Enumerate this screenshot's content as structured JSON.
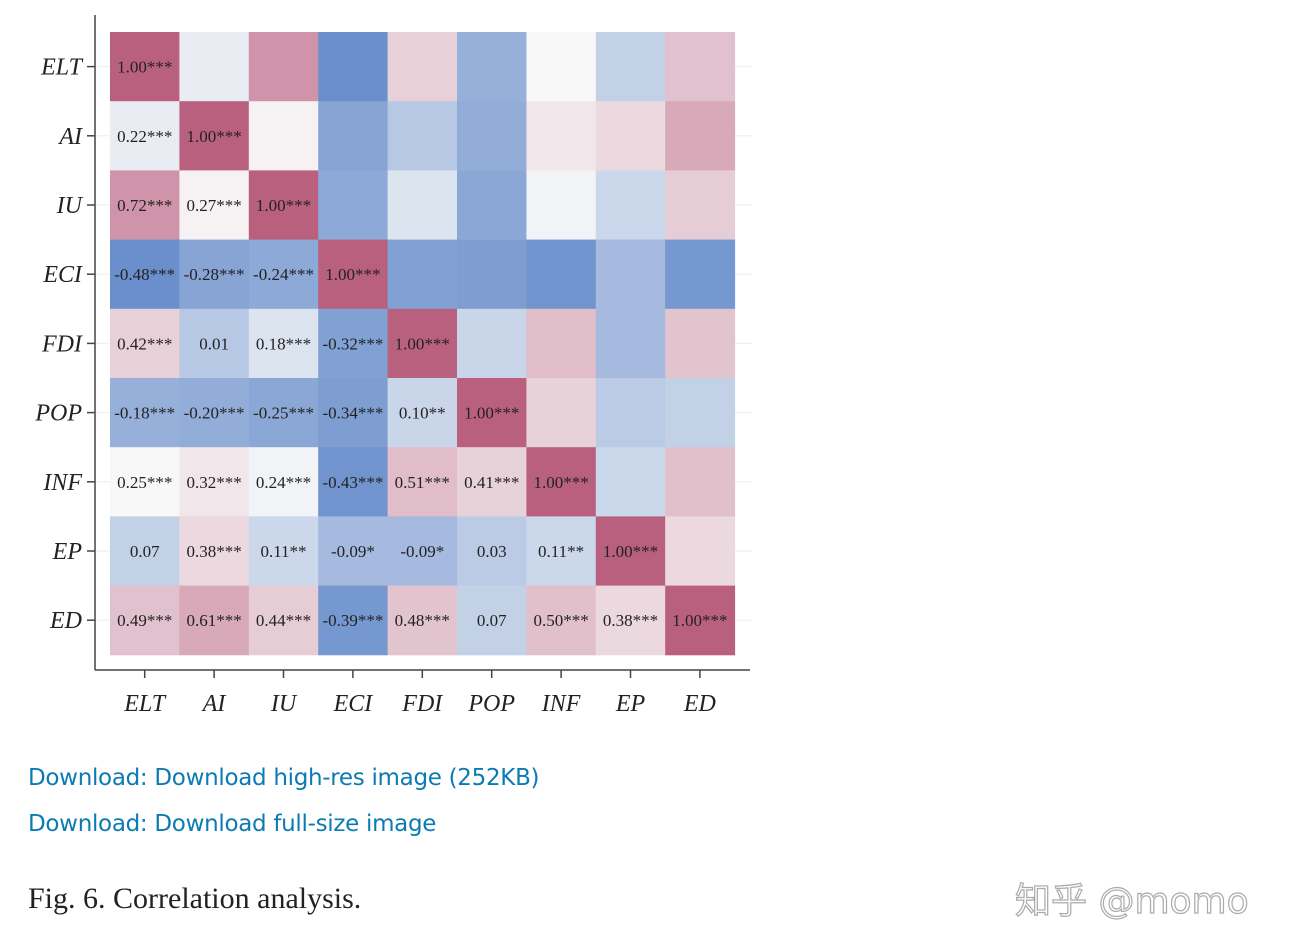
{
  "chart_data": {
    "type": "heatmap",
    "variables": [
      "ELT",
      "AI",
      "IU",
      "ECI",
      "FDI",
      "POP",
      "INF",
      "EP",
      "ED"
    ],
    "lower_triangle_labels": [
      [
        "1.00***"
      ],
      [
        "0.22***",
        "1.00***"
      ],
      [
        "0.72***",
        "0.27***",
        "1.00***"
      ],
      [
        "-0.48***",
        "-0.28***",
        "-0.24***",
        "1.00***"
      ],
      [
        "0.42***",
        "0.01",
        "0.18***",
        "-0.32***",
        "1.00***"
      ],
      [
        "-0.18***",
        "-0.20***",
        "-0.25***",
        "-0.34***",
        "0.10**",
        "1.00***"
      ],
      [
        "0.25***",
        "0.32***",
        "0.24***",
        "-0.43***",
        "0.51***",
        "0.41***",
        "1.00***"
      ],
      [
        "0.07",
        "0.38***",
        "0.11**",
        "-0.09*",
        "-0.09*",
        "0.03",
        "0.11**",
        "1.00***"
      ],
      [
        "0.49***",
        "0.61***",
        "0.44***",
        "-0.39***",
        "0.48***",
        "0.07",
        "0.50***",
        "0.38***",
        "1.00***"
      ]
    ],
    "colors": {
      "positive": "#b9607f",
      "neutral": "#f8f8f8",
      "negative": "#6a8fcc"
    },
    "grid": true
  },
  "links": [
    "Download: Download high-res image (252KB)",
    "Download: Download full-size image"
  ],
  "caption": "Fig. 6. Correlation analysis.",
  "watermark": "知乎 @momo"
}
